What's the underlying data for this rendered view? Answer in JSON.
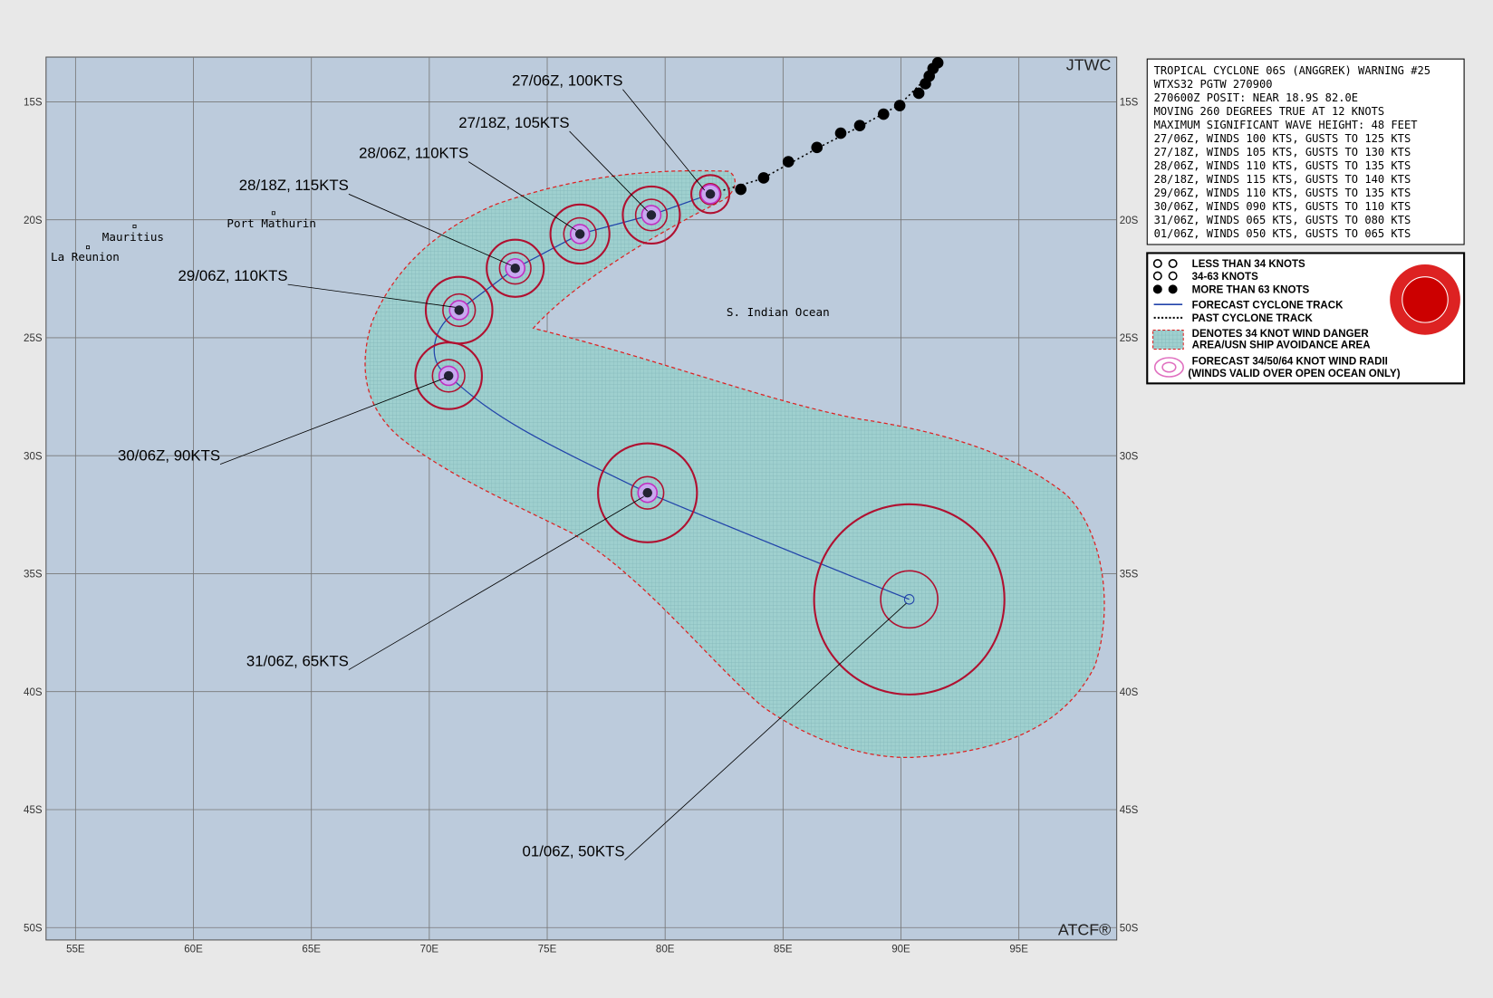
{
  "header": {
    "agency": "JTWC",
    "footer": "ATCF®"
  },
  "axes": {
    "lon": [
      "55E",
      "60E",
      "65E",
      "70E",
      "75E",
      "80E",
      "85E",
      "90E",
      "95E"
    ],
    "lat": [
      "15S",
      "20S",
      "25S",
      "30S",
      "35S",
      "40S",
      "45S",
      "50S"
    ]
  },
  "places": [
    "Mauritius",
    "La Reunion",
    "Port Mathurin",
    "S. Indian Ocean"
  ],
  "forecast_labels": [
    "27/06Z, 100KTS",
    "27/18Z, 105KTS",
    "28/06Z, 110KTS",
    "28/18Z, 115KTS",
    "29/06Z, 110KTS",
    "30/06Z,  90KTS",
    "31/06Z,  65KTS",
    "01/06Z,  50KTS"
  ],
  "warning": [
    "TROPICAL CYCLONE 06S (ANGGREK) WARNING #25",
    "WTXS32 PGTW 270900",
    "270600Z POSIT: NEAR 18.9S 82.0E",
    "MOVING 260 DEGREES TRUE AT 12 KNOTS",
    "MAXIMUM SIGNIFICANT WAVE HEIGHT: 48 FEET",
    "27/06Z, WINDS 100 KTS, GUSTS TO 125 KTS",
    "27/18Z, WINDS 105 KTS, GUSTS TO 130 KTS",
    "28/06Z, WINDS 110 KTS, GUSTS TO 135 KTS",
    "28/18Z, WINDS 115 KTS, GUSTS TO 140 KTS",
    "29/06Z, WINDS 110 KTS, GUSTS TO 135 KTS",
    "30/06Z, WINDS 090 KTS, GUSTS TO 110 KTS",
    "31/06Z, WINDS 065 KTS, GUSTS TO 080 KTS",
    "01/06Z, WINDS 050 KTS, GUSTS TO 065 KTS"
  ],
  "legend": [
    "LESS THAN 34 KNOTS",
    "34-63 KNOTS",
    "MORE THAN 63 KNOTS",
    "FORECAST CYCLONE TRACK",
    "PAST CYCLONE TRACK",
    "DENOTES 34 KNOT WIND DANGER",
    "AREA/USN SHIP AVOIDANCE AREA",
    "FORECAST 34/50/64 KNOT WIND RADII",
    "(WINDS VALID OVER OPEN OCEAN ONLY)"
  ]
}
